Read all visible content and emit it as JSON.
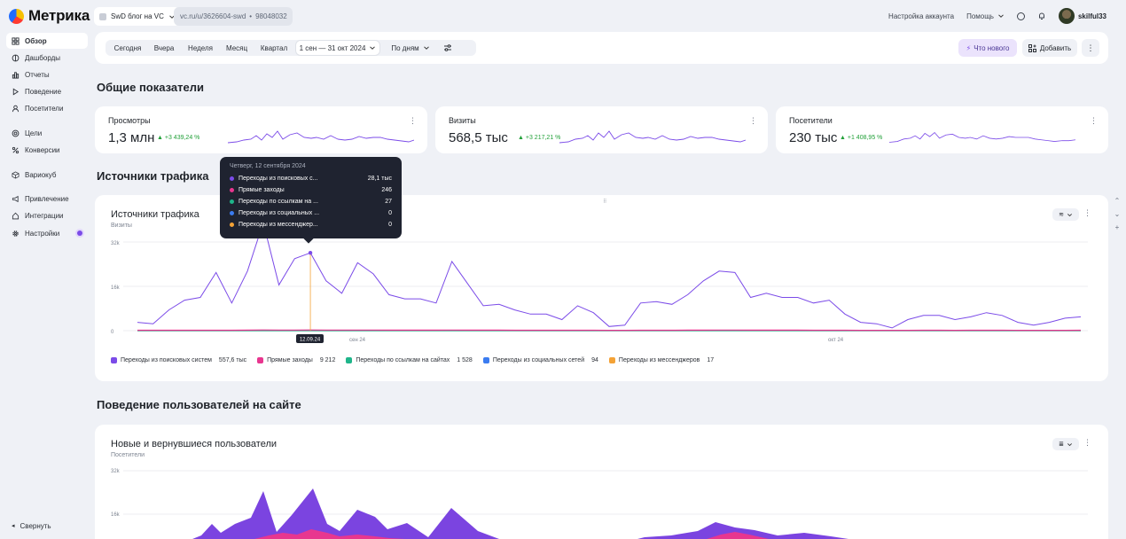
{
  "app": {
    "logo_text": "Метрика",
    "counter_name": "SwD блог на VC",
    "counter_url": "vc.ru/u/3626604-swd",
    "counter_id": "98048032"
  },
  "topbar": {
    "account_settings": "Настройка аккаунта",
    "help": "Помощь",
    "username": "skilful33"
  },
  "sidebar": {
    "items": [
      {
        "label": "Обзор",
        "icon": "grid-icon"
      },
      {
        "label": "Дашборды",
        "icon": "dashboard-icon"
      },
      {
        "label": "Отчеты",
        "icon": "reports-icon"
      },
      {
        "label": "Поведение",
        "icon": "play-icon"
      },
      {
        "label": "Посетители",
        "icon": "user-icon"
      },
      {
        "label": "Цели",
        "icon": "target-icon"
      },
      {
        "label": "Конверсии",
        "icon": "percent-icon"
      },
      {
        "label": "Вариокуб",
        "icon": "cube-icon"
      },
      {
        "label": "Привлечение",
        "icon": "megaphone-icon"
      },
      {
        "label": "Интеграции",
        "icon": "home-icon"
      },
      {
        "label": "Настройки",
        "icon": "gear-icon"
      }
    ],
    "collapse": "Свернуть"
  },
  "filters": {
    "periods": [
      "Сегодня",
      "Вчера",
      "Неделя",
      "Месяц",
      "Квартал"
    ],
    "date_range": "1 сен — 31 окт 2024",
    "grouping": "По дням",
    "whats_new": "Что нового",
    "add": "Добавить"
  },
  "sections": {
    "overview": "Общие показатели",
    "traffic": "Источники трафика",
    "behavior": "Поведение пользователей на сайте"
  },
  "metrics": [
    {
      "label": "Просмотры",
      "value": "1,3 млн",
      "delta": "+3 439,24 %"
    },
    {
      "label": "Визиты",
      "value": "568,5 тыс",
      "delta": "+3 217,21 %"
    },
    {
      "label": "Посетители",
      "value": "230 тыс",
      "delta": "+1 408,95 %"
    }
  ],
  "traffic_chart": {
    "title": "Источники трафика",
    "subtitle": "Визиты",
    "y_ticks": [
      "32k",
      "16k",
      "0"
    ],
    "x_ticks": [
      "сен 24",
      "окт 24"
    ],
    "selected_date_label": "12.09.24",
    "legend": [
      {
        "name": "Переходы из поисковых систем",
        "value": "557,6 тыс",
        "color": "#7b4be8"
      },
      {
        "name": "Прямые заходы",
        "value": "9 212",
        "color": "#e8368f"
      },
      {
        "name": "Переходы по ссылкам на сайтах",
        "value": "1 528",
        "color": "#1fb58a"
      },
      {
        "name": "Переходы из социальных сетей",
        "value": "94",
        "color": "#3b7cf0"
      },
      {
        "name": "Переходы из мессенджеров",
        "value": "17",
        "color": "#f4a236"
      }
    ]
  },
  "tooltip": {
    "title": "Четверг, 12 сентября 2024",
    "rows": [
      {
        "name": "Переходы из поисковых с...",
        "value": "28,1 тыс",
        "color": "#7b4be8"
      },
      {
        "name": "Прямые заходы",
        "value": "246",
        "color": "#e8368f"
      },
      {
        "name": "Переходы по ссылкам на ...",
        "value": "27",
        "color": "#1fb58a"
      },
      {
        "name": "Переходы из социальных ...",
        "value": "0",
        "color": "#3b7cf0"
      },
      {
        "name": "Переходы из мессенджер...",
        "value": "0",
        "color": "#f4a236"
      }
    ]
  },
  "behavior_chart": {
    "title": "Новые и вернувшиеся пользователи",
    "subtitle": "Посетители",
    "y_ticks": [
      "32k",
      "16k"
    ]
  },
  "chart_data": [
    {
      "type": "line",
      "title": "Источники трафика",
      "ylabel": "Визиты",
      "ylim": [
        0,
        32000
      ],
      "x_start": "2024-09-01",
      "x_end": "2024-10-31",
      "series": [
        {
          "name": "Переходы из поисковых систем",
          "color": "#7b4be8",
          "values": [
            3000,
            2500,
            7500,
            11000,
            12000,
            21000,
            10000,
            21500,
            39000,
            16500,
            26000,
            28100,
            18000,
            13500,
            24500,
            20500,
            13000,
            11500,
            11500,
            10000,
            25000,
            17000,
            9000,
            9500,
            7500,
            6000,
            6000,
            4000,
            9000,
            6500,
            1500,
            2000,
            10000,
            10500,
            9500,
            13000,
            18000,
            21500,
            21000,
            12000,
            13500,
            12000,
            12000,
            10000,
            11000,
            6000,
            3000,
            2500,
            1000,
            4000,
            5500,
            5500,
            4000,
            5000,
            6500,
            5500,
            3000,
            2000,
            3000,
            4500,
            5000
          ]
        },
        {
          "name": "Прямые заходы",
          "color": "#e8368f",
          "values": [
            150,
            150,
            150,
            150,
            160,
            170,
            160,
            200,
            260,
            230,
            240,
            246,
            220,
            210,
            230,
            220,
            200,
            200,
            190,
            180,
            210,
            200,
            180,
            180,
            170,
            160,
            160,
            150,
            170,
            160,
            140,
            140,
            170,
            170,
            170,
            180,
            200,
            210,
            210,
            190,
            190,
            180,
            180,
            170,
            170,
            150,
            140,
            130,
            120,
            140,
            150,
            150,
            140,
            150,
            160,
            150,
            130,
            120,
            130,
            140,
            150
          ]
        },
        {
          "name": "Переходы по ссылкам на сайтах",
          "color": "#1fb58a",
          "values": [
            20,
            20,
            20,
            20,
            25,
            25,
            25,
            28,
            30,
            28,
            28,
            27,
            26,
            26,
            27,
            26,
            25,
            25,
            25,
            24,
            26,
            25,
            24,
            24,
            24,
            23,
            23,
            22,
            24,
            23,
            22,
            22,
            24,
            24,
            24,
            25,
            26,
            27,
            27,
            25,
            25,
            25,
            25,
            24,
            24,
            23,
            22,
            22,
            21,
            22,
            23,
            23,
            22,
            23,
            24,
            23,
            22,
            21,
            22,
            22,
            23
          ]
        },
        {
          "name": "Переходы из социальных сетей",
          "color": "#3b7cf0",
          "values": [
            2,
            2,
            2,
            2,
            2,
            2,
            2,
            2,
            2,
            1,
            1,
            0,
            1,
            1,
            2,
            2,
            1,
            1,
            1,
            1,
            2,
            2,
            1,
            1,
            1,
            1,
            1,
            1,
            2,
            1,
            1,
            1,
            2,
            2,
            2,
            2,
            2,
            2,
            2,
            2,
            2,
            2,
            2,
            2,
            2,
            1,
            1,
            1,
            1,
            1,
            2,
            2,
            1,
            1,
            2,
            1,
            1,
            1,
            1,
            1,
            2
          ]
        },
        {
          "name": "Переходы из мессенджеров",
          "color": "#f4a236",
          "values": [
            0,
            0,
            0,
            0,
            0,
            0,
            0,
            0,
            1,
            0,
            0,
            0,
            0,
            0,
            1,
            0,
            0,
            0,
            0,
            0,
            1,
            0,
            0,
            0,
            0,
            0,
            0,
            0,
            1,
            0,
            0,
            0,
            1,
            0,
            0,
            0,
            1,
            0,
            0,
            0,
            1,
            0,
            0,
            0,
            0,
            0,
            0,
            0,
            0,
            0,
            1,
            0,
            0,
            0,
            1,
            0,
            0,
            0,
            0,
            0,
            1
          ]
        }
      ]
    },
    {
      "type": "area",
      "title": "Новые и вернувшиеся пользователи",
      "ylabel": "Посетители",
      "ylim": [
        0,
        32000
      ]
    }
  ]
}
